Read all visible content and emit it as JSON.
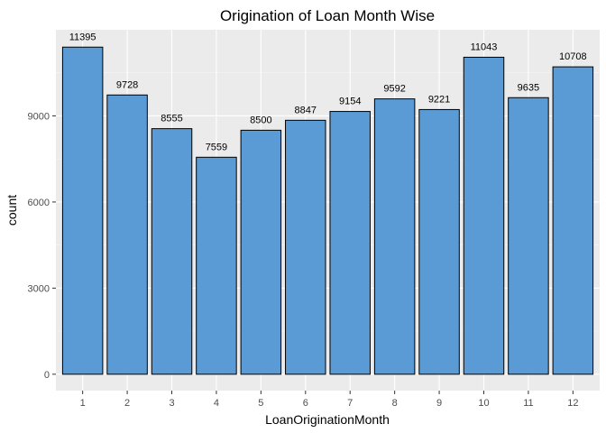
{
  "chart_data": {
    "type": "bar",
    "title": "Origination of Loan Month Wise",
    "xlabel": "LoanOriginationMonth",
    "ylabel": "count",
    "categories": [
      "1",
      "2",
      "3",
      "4",
      "5",
      "6",
      "7",
      "8",
      "9",
      "10",
      "11",
      "12"
    ],
    "values": [
      11395,
      9728,
      8555,
      7559,
      8500,
      8847,
      9154,
      9592,
      9221,
      11043,
      9635,
      10708
    ],
    "data_labels": [
      "11395",
      "9728",
      "8555",
      "7559",
      "8500",
      "8847",
      "9154",
      "9592",
      "9221",
      "11043",
      "9635",
      "10708"
    ],
    "y_ticks": [
      0,
      3000,
      6000,
      9000
    ],
    "y_tick_labels": [
      "0",
      "3000",
      "6000",
      "9000"
    ],
    "ylim": [
      -570,
      12000
    ],
    "grid": true,
    "colors": {
      "bar_fill": "#5b9bd5",
      "bar_stroke": "#000000",
      "panel_background": "#ebebeb",
      "grid_major": "#ffffff",
      "grid_minor": "#f5f5f5"
    }
  }
}
